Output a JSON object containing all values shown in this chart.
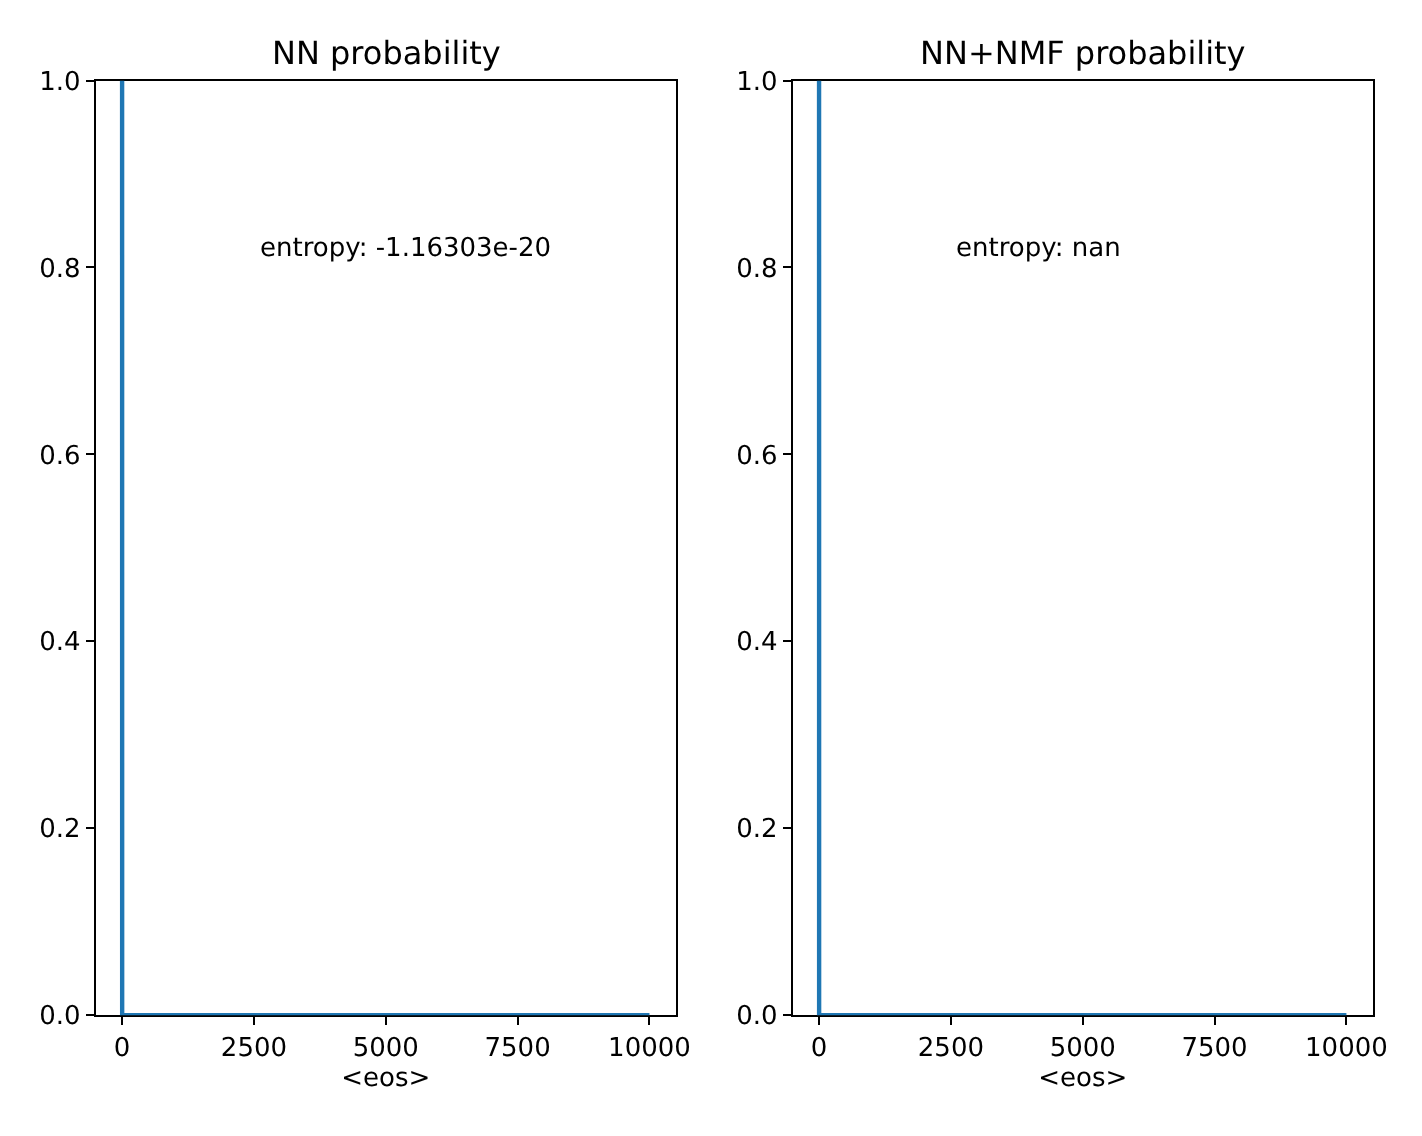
{
  "chart_data": [
    {
      "type": "line",
      "title": "NN probability",
      "xlabel": "<eos>",
      "x": [
        0,
        1,
        2500,
        5000,
        7500,
        10000
      ],
      "series": [
        {
          "color": "#1f77b4",
          "values": [
            1,
            0,
            0,
            0,
            0,
            0
          ]
        }
      ],
      "xlim": [
        -500,
        10500
      ],
      "xticks": [
        0,
        2500,
        5000,
        7500,
        10000
      ],
      "ylim": [
        0,
        1
      ],
      "yticks": [
        {
          "value": 0,
          "label": "0.0"
        },
        {
          "value": 0.2,
          "label": "0.2"
        },
        {
          "value": 0.4,
          "label": "0.4"
        },
        {
          "value": 0.6,
          "label": "0.6"
        },
        {
          "value": 0.8,
          "label": "0.8"
        },
        {
          "value": 1.0,
          "label": "1.0"
        }
      ],
      "annotations": [
        "entropy: -1.16303e-20"
      ],
      "marker": "none",
      "line_style": "solid"
    },
    {
      "type": "line",
      "title": "NN+NMF probability",
      "xlabel": "<eos>",
      "x": [
        0,
        1,
        2500,
        5000,
        7500,
        10000
      ],
      "series": [
        {
          "color": "#1f77b4",
          "values": [
            1,
            0,
            0,
            0,
            0,
            0
          ]
        }
      ],
      "xlim": [
        -500,
        10500
      ],
      "xticks": [
        0,
        2500,
        5000,
        7500,
        10000
      ],
      "ylim": [
        0,
        1
      ],
      "yticks": [
        {
          "value": 0,
          "label": "0.0"
        },
        {
          "value": 0.2,
          "label": "0.2"
        },
        {
          "value": 0.4,
          "label": "0.4"
        },
        {
          "value": 0.6,
          "label": "0.6"
        },
        {
          "value": 0.8,
          "label": "0.8"
        },
        {
          "value": 1.0,
          "label": "1.0"
        }
      ],
      "annotations": [
        "entropy: nan"
      ],
      "marker": "none",
      "line_style": "solid"
    }
  ]
}
